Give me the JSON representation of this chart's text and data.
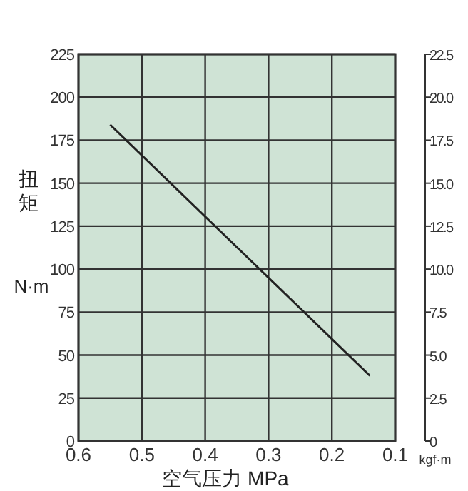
{
  "chart_data": {
    "type": "line",
    "xlabel": "空气压力 MPa",
    "ylabel": "扭矩",
    "annotations": [
      "N·m"
    ],
    "y2label": "kgf·m",
    "series": [
      {
        "color": "#222222",
        "x": [
          0.55,
          0.14
        ],
        "values": [
          184,
          38
        ]
      }
    ],
    "xlim": [
      0.6,
      0.1
    ],
    "xticks": [
      0.6,
      0.5,
      0.4,
      0.3,
      0.2,
      0.1
    ],
    "ylim": [
      0,
      225
    ],
    "yticks": [
      0,
      25,
      50,
      75,
      100,
      125,
      150,
      175,
      200,
      225
    ],
    "y2lim": [
      0,
      22.5
    ],
    "y2ticks": [
      0,
      2.5,
      {
        "value": 5,
        "label": "5.0"
      },
      7.5,
      {
        "value": 10,
        "label": "10.0"
      },
      12.5,
      {
        "value": 15,
        "label": "15.0"
      },
      17.5,
      {
        "value": 20,
        "label": "20.0"
      },
      22.5
    ],
    "grid": true
  }
}
